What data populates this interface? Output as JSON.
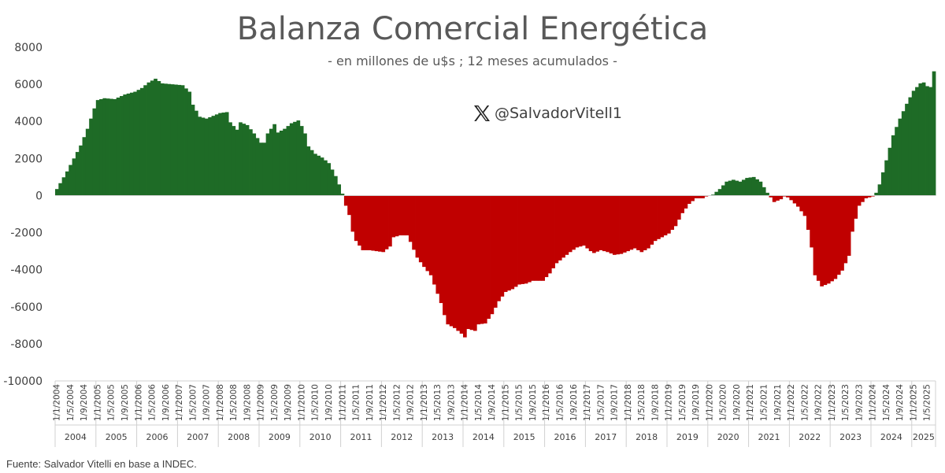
{
  "title": "Balanza Comercial Energética",
  "subtitle": "- en millones de u$s ; 12 meses acumulados -",
  "watermark": {
    "icon": "x-logo-icon",
    "handle": "@SalvadorVitell1"
  },
  "source": "Fuente: Salvador Vitelli en base a INDEC.",
  "colors": {
    "positive": "#1e6b26",
    "negative": "#c00000",
    "axis": "#d0d0d0",
    "text": "#404040"
  },
  "chart_data": {
    "type": "bar",
    "ylim": [
      -10000,
      8000
    ],
    "yticks": [
      "8000",
      "6000",
      "4000",
      "2000",
      "0",
      "-2000",
      "-4000",
      "-6000",
      "-8000",
      "-10000"
    ],
    "xtick_labels": [
      "1/1/2004",
      "1/5/2004",
      "1/9/2004",
      "1/1/2005",
      "1/5/2005",
      "1/9/2005",
      "1/1/2006",
      "1/5/2006",
      "1/9/2006",
      "1/1/2007",
      "1/5/2007",
      "1/9/2007",
      "1/1/2008",
      "1/5/2008",
      "1/9/2008",
      "1/1/2009",
      "1/5/2009",
      "1/9/2009",
      "1/1/2010",
      "1/5/2010",
      "1/9/2010",
      "1/1/2011",
      "1/5/2011",
      "1/9/2011",
      "1/1/2012",
      "1/5/2012",
      "1/9/2012",
      "1/1/2013",
      "1/5/2013",
      "1/9/2013",
      "1/1/2014",
      "1/5/2014",
      "1/9/2014",
      "1/1/2015",
      "1/5/2015",
      "1/9/2015",
      "1/1/2016",
      "1/5/2016",
      "1/9/2016",
      "1/1/2017",
      "1/5/2017",
      "1/9/2017",
      "1/1/2018",
      "1/5/2018",
      "1/9/2018",
      "1/1/2019",
      "1/5/2019",
      "1/9/2019",
      "1/1/2020",
      "1/5/2020",
      "1/9/2020",
      "1/1/2021",
      "1/5/2021",
      "1/9/2021",
      "1/1/2022",
      "1/5/2022",
      "1/9/2022",
      "1/1/2023",
      "1/5/2023",
      "1/9/2023",
      "1/1/2024",
      "1/5/2024",
      "1/9/2024",
      "1/1/2025",
      "1/5/2025"
    ],
    "years": [
      "2004",
      "2005",
      "2006",
      "2007",
      "2008",
      "2009",
      "2010",
      "2011",
      "2012",
      "2013",
      "2014",
      "2015",
      "2016",
      "2017",
      "2018",
      "2019",
      "2020",
      "2021",
      "2022",
      "2023",
      "2024",
      "2025"
    ],
    "anchors": [
      [
        "1/2004",
        350
      ],
      [
        "4/2004",
        1300
      ],
      [
        "8/2004",
        2700
      ],
      [
        "10/2004",
        3600
      ],
      [
        "12/2004",
        4700
      ],
      [
        "1/2005",
        5150
      ],
      [
        "3/2005",
        5250
      ],
      [
        "6/2005",
        5200
      ],
      [
        "9/2005",
        5450
      ],
      [
        "12/2005",
        5600
      ],
      [
        "2/2006",
        5800
      ],
      [
        "4/2006",
        6100
      ],
      [
        "6/2006",
        6300
      ],
      [
        "8/2006",
        6050
      ],
      [
        "11/2006",
        6000
      ],
      [
        "2/2007",
        5950
      ],
      [
        "4/2007",
        5600
      ],
      [
        "5/2007",
        4900
      ],
      [
        "7/2007",
        4250
      ],
      [
        "9/2007",
        4150
      ],
      [
        "11/2007",
        4300
      ],
      [
        "1/2008",
        4450
      ],
      [
        "3/2008",
        4500
      ],
      [
        "4/2008",
        3950
      ],
      [
        "6/2008",
        3550
      ],
      [
        "7/2008",
        3950
      ],
      [
        "9/2008",
        3800
      ],
      [
        "11/2008",
        3350
      ],
      [
        "1/2009",
        2850
      ],
      [
        "2/2009",
        2850
      ],
      [
        "3/2009",
        3350
      ],
      [
        "5/2009",
        3850
      ],
      [
        "6/2009",
        3400
      ],
      [
        "8/2009",
        3600
      ],
      [
        "10/2009",
        3900
      ],
      [
        "12/2009",
        4050
      ],
      [
        "1/2010",
        3750
      ],
      [
        "2/2010",
        3350
      ],
      [
        "3/2010",
        2650
      ],
      [
        "5/2010",
        2250
      ],
      [
        "7/2010",
        2050
      ],
      [
        "9/2010",
        1750
      ],
      [
        "11/2010",
        1050
      ],
      [
        "12/2010",
        600
      ],
      [
        "1/2011",
        100
      ],
      [
        "2/2011",
        -550
      ],
      [
        "3/2011",
        -1050
      ],
      [
        "4/2011",
        -1950
      ],
      [
        "5/2011",
        -2450
      ],
      [
        "7/2011",
        -2950
      ],
      [
        "9/2011",
        -2950
      ],
      [
        "11/2011",
        -3000
      ],
      [
        "1/2012",
        -3050
      ],
      [
        "3/2012",
        -2750
      ],
      [
        "4/2012",
        -2250
      ],
      [
        "6/2012",
        -2150
      ],
      [
        "8/2012",
        -2150
      ],
      [
        "9/2012",
        -2500
      ],
      [
        "11/2012",
        -3350
      ],
      [
        "1/2013",
        -3850
      ],
      [
        "3/2013",
        -4300
      ],
      [
        "5/2013",
        -5300
      ],
      [
        "6/2013",
        -5800
      ],
      [
        "7/2013",
        -6450
      ],
      [
        "8/2013",
        -6950
      ],
      [
        "10/2013",
        -7150
      ],
      [
        "12/2013",
        -7450
      ],
      [
        "1/2014",
        -7650
      ],
      [
        "2/2014",
        -7200
      ],
      [
        "4/2014",
        -7300
      ],
      [
        "5/2014",
        -6950
      ],
      [
        "7/2014",
        -6900
      ],
      [
        "9/2014",
        -6400
      ],
      [
        "11/2014",
        -5700
      ],
      [
        "1/2015",
        -5200
      ],
      [
        "3/2015",
        -5050
      ],
      [
        "5/2015",
        -4800
      ],
      [
        "7/2015",
        -4750
      ],
      [
        "9/2015",
        -4600
      ],
      [
        "12/2015",
        -4600
      ],
      [
        "2/2016",
        -4200
      ],
      [
        "4/2016",
        -3650
      ],
      [
        "6/2016",
        -3350
      ],
      [
        "8/2016",
        -3050
      ],
      [
        "10/2016",
        -2800
      ],
      [
        "12/2016",
        -2700
      ],
      [
        "2/2017",
        -3000
      ],
      [
        "3/2017",
        -3100
      ],
      [
        "5/2017",
        -2950
      ],
      [
        "7/2017",
        -3050
      ],
      [
        "9/2017",
        -3200
      ],
      [
        "11/2017",
        -3150
      ],
      [
        "1/2018",
        -3000
      ],
      [
        "3/2018",
        -2850
      ],
      [
        "5/2018",
        -3050
      ],
      [
        "7/2018",
        -2850
      ],
      [
        "9/2018",
        -2450
      ],
      [
        "11/2018",
        -2250
      ],
      [
        "1/2019",
        -2050
      ],
      [
        "3/2019",
        -1650
      ],
      [
        "5/2019",
        -950
      ],
      [
        "7/2019",
        -450
      ],
      [
        "9/2019",
        -150
      ],
      [
        "11/2019",
        -150
      ],
      [
        "12/2019",
        -50
      ],
      [
        "2/2020",
        50
      ],
      [
        "4/2020",
        350
      ],
      [
        "6/2020",
        750
      ],
      [
        "8/2020",
        850
      ],
      [
        "10/2020",
        750
      ],
      [
        "12/2020",
        950
      ],
      [
        "2/2021",
        1000
      ],
      [
        "4/2021",
        750
      ],
      [
        "6/2021",
        150
      ],
      [
        "7/2021",
        -100
      ],
      [
        "8/2021",
        -350
      ],
      [
        "10/2021",
        -200
      ],
      [
        "11/2021",
        -50
      ],
      [
        "12/2021",
        -100
      ],
      [
        "1/2022",
        -250
      ],
      [
        "3/2022",
        -600
      ],
      [
        "5/2022",
        -1100
      ],
      [
        "6/2022",
        -1850
      ],
      [
        "7/2022",
        -2800
      ],
      [
        "8/2022",
        -4300
      ],
      [
        "10/2022",
        -4900
      ],
      [
        "12/2022",
        -4750
      ],
      [
        "2/2023",
        -4500
      ],
      [
        "4/2023",
        -4050
      ],
      [
        "6/2023",
        -3250
      ],
      [
        "7/2023",
        -1950
      ],
      [
        "9/2023",
        -550
      ],
      [
        "11/2023",
        -150
      ],
      [
        "1/2024",
        -50
      ],
      [
        "2/2024",
        150
      ],
      [
        "3/2024",
        600
      ],
      [
        "5/2024",
        1900
      ],
      [
        "7/2024",
        3250
      ],
      [
        "9/2024",
        4150
      ],
      [
        "11/2024",
        4950
      ],
      [
        "1/2025",
        5650
      ],
      [
        "3/2025",
        6050
      ],
      [
        "4/2025",
        6100
      ],
      [
        "5/2025",
        5900
      ],
      [
        "6/2025",
        5850
      ],
      [
        "7/2025",
        6700
      ]
    ]
  }
}
